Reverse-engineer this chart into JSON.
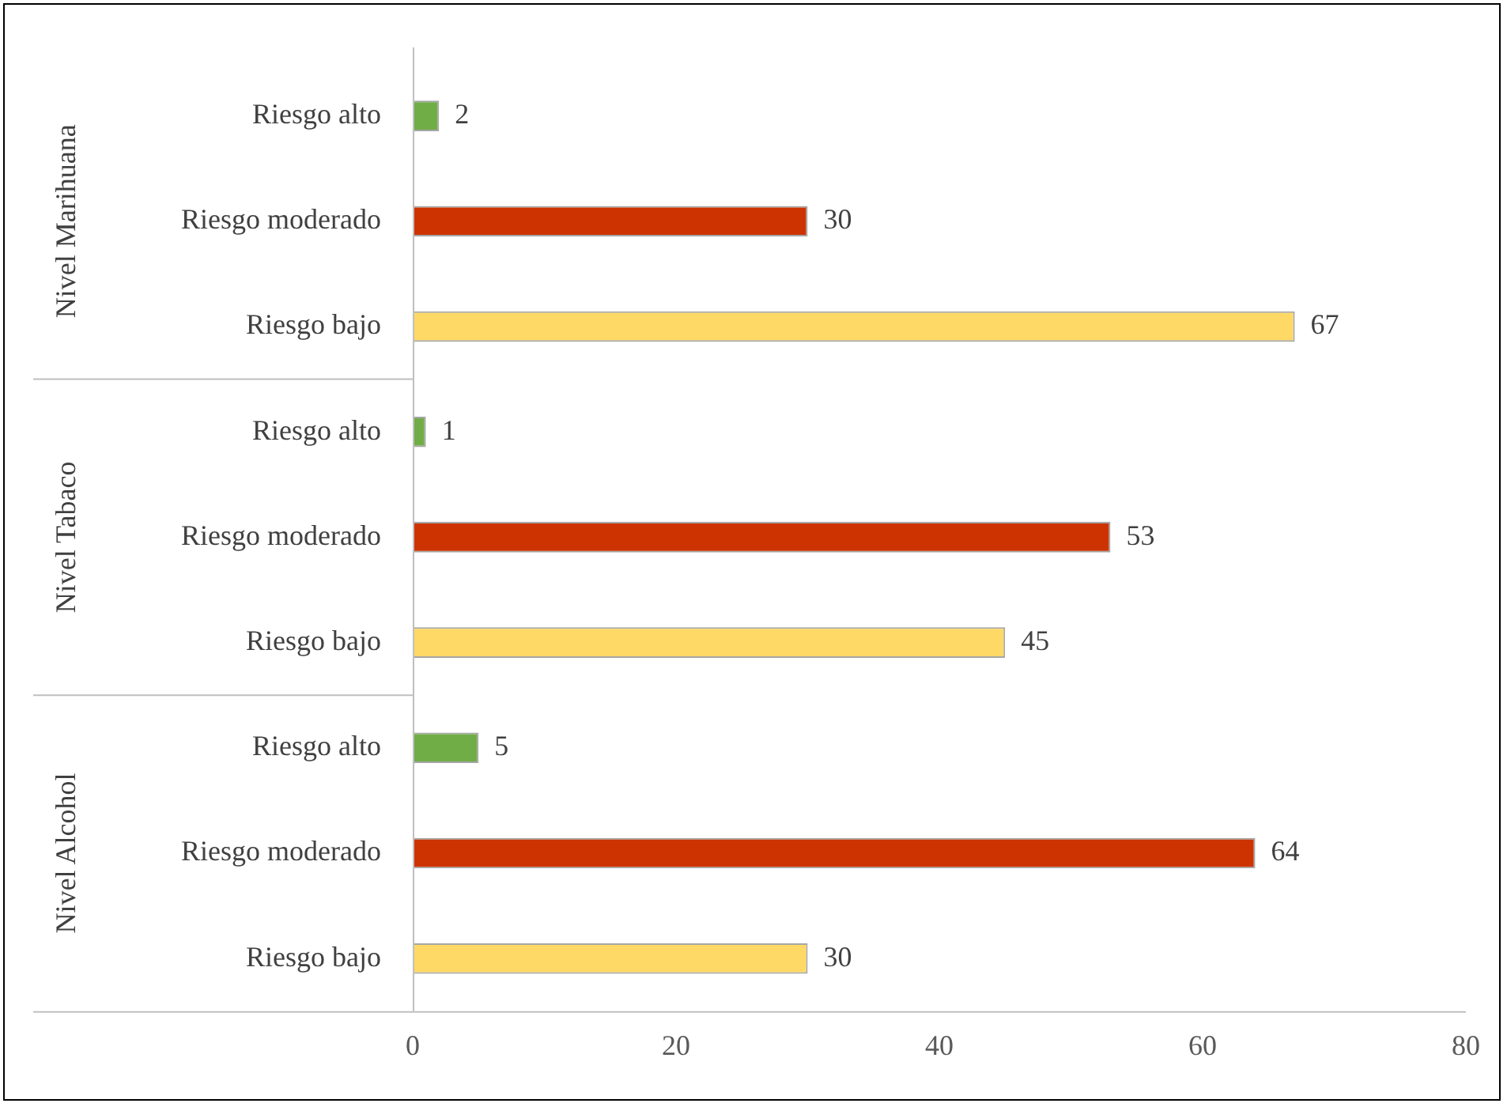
{
  "chart_data": {
    "type": "bar",
    "orientation": "horizontal",
    "categories": [
      "Riesgo alto",
      "Riesgo moderado",
      "Riesgo bajo",
      "Riesgo alto",
      "Riesgo moderado",
      "Riesgo bajo",
      "Riesgo alto",
      "Riesgo moderado",
      "Riesgo bajo"
    ],
    "values": [
      2,
      30,
      67,
      1,
      53,
      45,
      5,
      64,
      30
    ],
    "colors": [
      "#70ad47",
      "#cc3300",
      "#ffd966",
      "#70ad47",
      "#cc3300",
      "#ffd966",
      "#70ad47",
      "#cc3300",
      "#ffd966"
    ],
    "xlim": [
      0,
      80
    ],
    "xticks": [
      0,
      20,
      40,
      60,
      80
    ],
    "grid": false,
    "legend": false,
    "data_labels": true,
    "annotations": [
      "Nivel Marihuana",
      "Nivel Tabaco",
      "Nivel Alcohol"
    ]
  }
}
